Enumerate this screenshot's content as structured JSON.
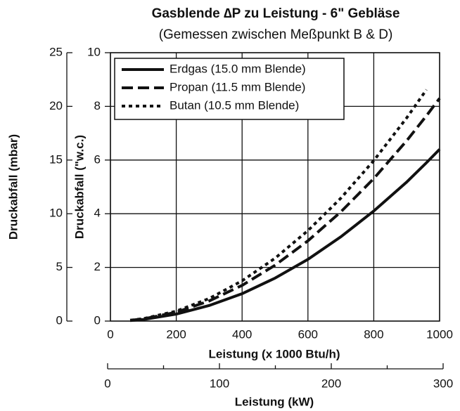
{
  "chart_data": {
    "type": "line",
    "title": "Gasblende ∆P  zu Leistung - 6\" Gebläse",
    "subtitle": "(Gemessen zwischen Meßpunkt B & D)",
    "xlabel": "Leistung (x 1000 Btu/h)",
    "ylabel": "Druckabfall (\"w.c.)",
    "y2label": "Druckabfall (mbar)",
    "x2label": "Leistung (kW)",
    "x": [
      60,
      100,
      200,
      300,
      400,
      500,
      600,
      700,
      800,
      900,
      960,
      1000
    ],
    "series": [
      {
        "name": "Erdgas (15.0 mm Blende)",
        "color": "#111111",
        "dash": "solid",
        "values": [
          0.02,
          0.06,
          0.26,
          0.58,
          1.02,
          1.6,
          2.3,
          3.14,
          4.1,
          5.18,
          5.9,
          6.4
        ]
      },
      {
        "name": "Propan (11.5 mm Blende)",
        "color": "#111111",
        "dash": "dashed",
        "values": [
          0.03,
          0.08,
          0.33,
          0.75,
          1.33,
          2.08,
          2.99,
          4.07,
          5.31,
          6.72,
          7.65,
          8.3
        ]
      },
      {
        "name": "Butan (10.5 mm Blende)",
        "color": "#111111",
        "dash": "dotted",
        "values": [
          0.03,
          0.09,
          0.37,
          0.84,
          1.5,
          2.34,
          3.37,
          4.58,
          5.98,
          7.57,
          8.62,
          null
        ]
      }
    ],
    "xlim": [
      0,
      1000
    ],
    "xticks": [
      0,
      200,
      400,
      600,
      800,
      1000
    ],
    "ylim": [
      0,
      10
    ],
    "yticks": [
      0,
      2,
      4,
      6,
      8,
      10
    ],
    "y2lim": [
      0,
      25
    ],
    "y2ticks": [
      0,
      5,
      10,
      15,
      20,
      25
    ],
    "x2lim": [
      0,
      300
    ],
    "x2ticks": [
      0,
      100,
      200,
      300
    ],
    "x2minor": [
      50,
      150,
      250
    ],
    "grid": true,
    "legend": "upper left"
  }
}
